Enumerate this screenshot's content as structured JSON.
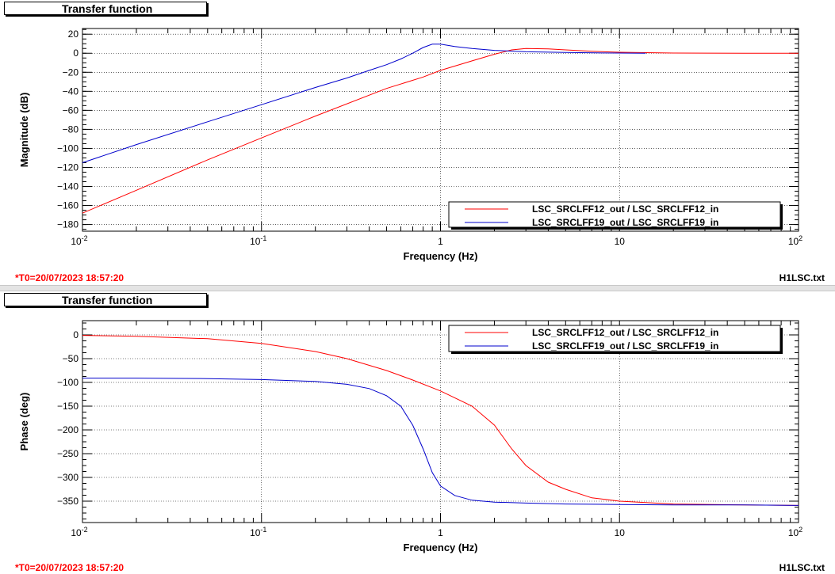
{
  "footer": {
    "t0": "*T0=20/07/2023 18:57:20",
    "filename": "H1LSC.txt"
  },
  "colors": {
    "red": "#ff0000",
    "blue": "#0000cc"
  },
  "chart_data": [
    {
      "type": "line",
      "title": "Transfer function",
      "xlabel": "Frequency (Hz)",
      "ylabel": "Magnitude (dB)",
      "xscale": "log",
      "xlim": [
        0.01,
        100
      ],
      "ylim": [
        -187,
        26
      ],
      "yticks": [
        20,
        0,
        -20,
        -40,
        -60,
        -80,
        -100,
        -120,
        -140,
        -160,
        -180
      ],
      "xticks": [
        0.01,
        0.1,
        1,
        10,
        100
      ],
      "xtick_labels": [
        [
          "10",
          "-2"
        ],
        [
          "10",
          "-1"
        ],
        [
          "1",
          ""
        ],
        [
          "10",
          ""
        ],
        [
          "10",
          "2"
        ]
      ],
      "grid": true,
      "legend_position": "bottom-right",
      "series": [
        {
          "name": "LSC_SRCLFF12_out / LSC_SRCLFF12_in",
          "color": "#ff0000",
          "x": [
            0.01,
            0.02,
            0.05,
            0.1,
            0.2,
            0.5,
            0.8,
            1.0,
            1.5,
            2.0,
            2.5,
            3.0,
            4.0,
            5.0,
            7.0,
            10,
            20,
            50,
            100
          ],
          "y": [
            -168,
            -144,
            -112,
            -89,
            -66,
            -37,
            -25,
            -18,
            -8,
            -1,
            3.5,
            5,
            4.5,
            3.5,
            2,
            1,
            0.2,
            0,
            0
          ]
        },
        {
          "name": "LSC_SRCLFF19_out / LSC_SRCLFF19_in",
          "color": "#0000cc",
          "x": [
            0.01,
            0.02,
            0.05,
            0.1,
            0.2,
            0.3,
            0.4,
            0.5,
            0.6,
            0.7,
            0.8,
            0.9,
            1.0,
            1.2,
            1.5,
            2.0,
            3.0,
            5.0,
            8.0,
            14
          ],
          "y": [
            -115,
            -96,
            -72,
            -54,
            -36,
            -26,
            -18,
            -12,
            -6,
            0,
            6,
            9.5,
            9.5,
            7,
            5,
            3,
            1.5,
            0.8,
            0.3,
            0
          ]
        }
      ]
    },
    {
      "type": "line",
      "title": "Transfer function",
      "xlabel": "Frequency (Hz)",
      "ylabel": "Phase (deg)",
      "xscale": "log",
      "xlim": [
        0.01,
        100
      ],
      "ylim": [
        -395,
        30
      ],
      "yticks": [
        0,
        -50,
        -100,
        -150,
        -200,
        -250,
        -300,
        -350
      ],
      "xticks": [
        0.01,
        0.1,
        1,
        10,
        100
      ],
      "xtick_labels": [
        [
          "10",
          "-2"
        ],
        [
          "10",
          "-1"
        ],
        [
          "1",
          ""
        ],
        [
          "10",
          ""
        ],
        [
          "10",
          "2"
        ]
      ],
      "grid": true,
      "legend_position": "top-right",
      "series": [
        {
          "name": "LSC_SRCLFF12_out / LSC_SRCLFF12_in",
          "color": "#ff0000",
          "x": [
            0.01,
            0.02,
            0.05,
            0.1,
            0.2,
            0.3,
            0.5,
            0.7,
            1.0,
            1.5,
            2.0,
            2.5,
            3.0,
            4.0,
            5.0,
            7.0,
            10,
            20,
            50,
            100
          ],
          "y": [
            -1,
            -3,
            -8,
            -18,
            -35,
            -50,
            -75,
            -95,
            -118,
            -150,
            -190,
            -240,
            -275,
            -310,
            -325,
            -343,
            -350,
            -356,
            -358,
            -359
          ]
        },
        {
          "name": "LSC_SRCLFF19_out / LSC_SRCLFF19_in",
          "color": "#0000cc",
          "x": [
            0.01,
            0.02,
            0.05,
            0.1,
            0.2,
            0.3,
            0.4,
            0.5,
            0.6,
            0.7,
            0.8,
            0.9,
            1.0,
            1.2,
            1.5,
            2.0,
            3.0,
            5.0,
            10,
            20,
            50,
            100
          ],
          "y": [
            -91,
            -91,
            -92,
            -94,
            -98,
            -104,
            -113,
            -128,
            -150,
            -190,
            -240,
            -290,
            -318,
            -338,
            -348,
            -352,
            -354,
            -356,
            -357,
            -358,
            -358,
            -359
          ]
        }
      ]
    }
  ]
}
